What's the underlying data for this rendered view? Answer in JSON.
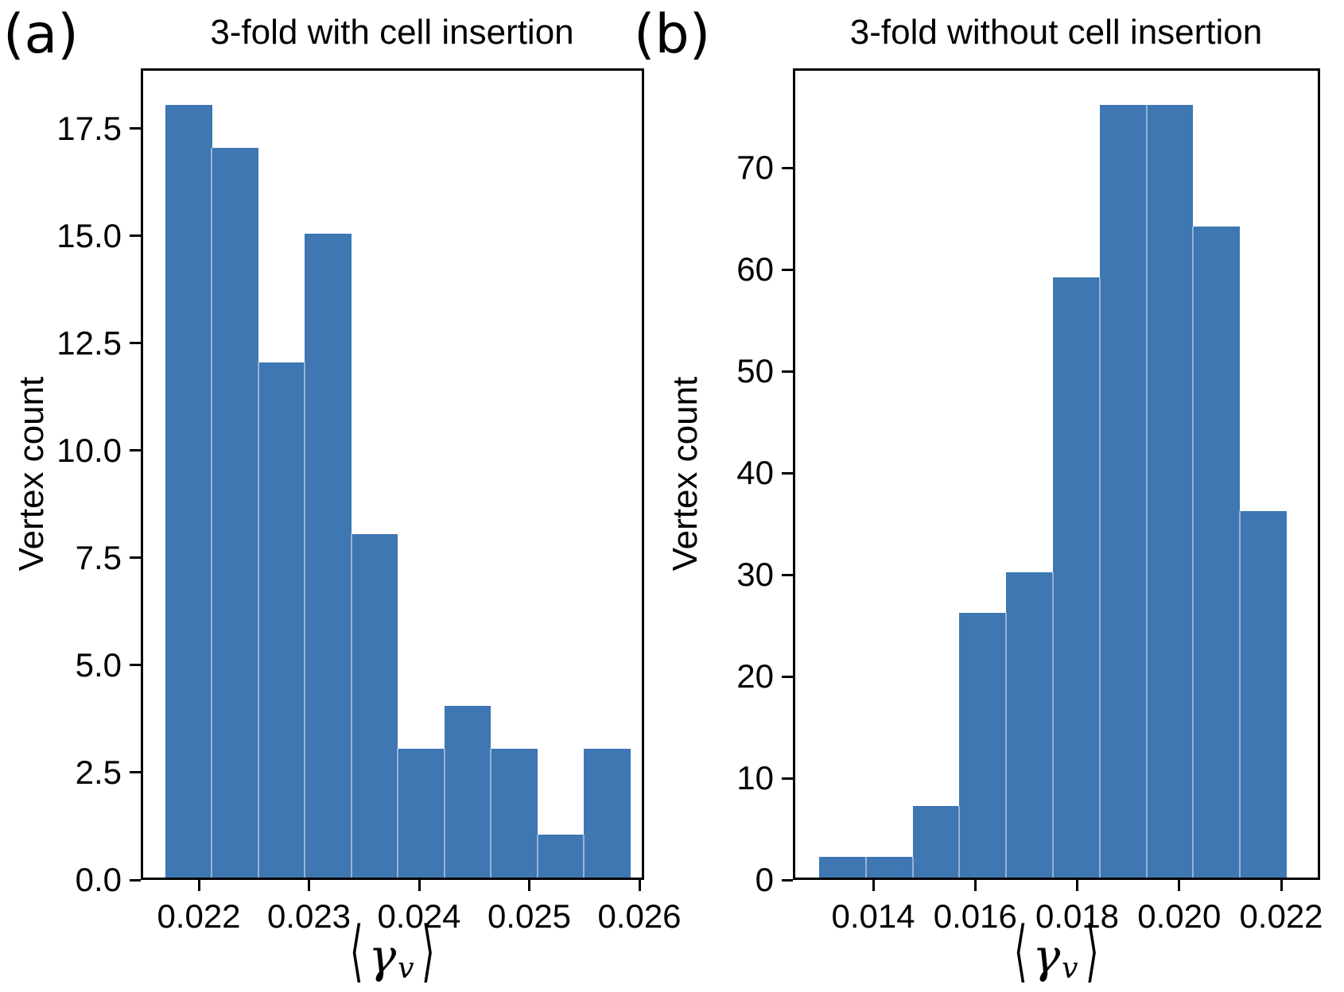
{
  "chart_data": [
    {
      "type": "histogram",
      "panel_label": "(a)",
      "title": "3-fold with cell insertion",
      "ylabel": "Vertex count",
      "xlabel": "⟨γv⟩",
      "xlabel_parts": {
        "lbracket": "⟨",
        "symbol": "γ",
        "subscript": "v",
        "rbracket": "⟩"
      },
      "bar_color": "#3E77B2",
      "bin_start": 0.021675,
      "bin_width": 0.000422,
      "values": [
        18,
        17,
        12,
        15,
        8,
        3,
        4,
        3,
        1,
        3
      ],
      "xlim": [
        0.021473,
        0.026043
      ],
      "ylim": [
        0,
        18.9
      ],
      "grid": false,
      "x_ticks": [
        {
          "value": 0.022,
          "label": "0.022"
        },
        {
          "value": 0.023,
          "label": "0.023"
        },
        {
          "value": 0.024,
          "label": "0.024"
        },
        {
          "value": 0.025,
          "label": "0.025"
        },
        {
          "value": 0.026,
          "label": "0.026"
        }
      ],
      "y_ticks": [
        {
          "value": 0.0,
          "label": "0.0"
        },
        {
          "value": 2.5,
          "label": "2.5"
        },
        {
          "value": 5.0,
          "label": "5.0"
        },
        {
          "value": 7.5,
          "label": "7.5"
        },
        {
          "value": 10.0,
          "label": "10.0"
        },
        {
          "value": 12.5,
          "label": "12.5"
        },
        {
          "value": 15.0,
          "label": "15.0"
        },
        {
          "value": 17.5,
          "label": "17.5"
        }
      ]
    },
    {
      "type": "histogram",
      "panel_label": "(b)",
      "title": "3-fold without cell insertion",
      "ylabel": "Vertex count",
      "xlabel": "⟨γv⟩",
      "xlabel_parts": {
        "lbracket": "⟨",
        "symbol": "γ",
        "subscript": "v",
        "rbracket": "⟩"
      },
      "bar_color": "#3E77B2",
      "bin_start": 0.012892,
      "bin_width": 0.000917,
      "values": [
        2,
        2,
        7,
        26,
        30,
        59,
        76,
        76,
        64,
        36
      ],
      "xlim": [
        0.012424,
        0.022764
      ],
      "ylim": [
        0,
        79.8
      ],
      "grid": false,
      "x_ticks": [
        {
          "value": 0.014,
          "label": "0.014"
        },
        {
          "value": 0.016,
          "label": "0.016"
        },
        {
          "value": 0.018,
          "label": "0.018"
        },
        {
          "value": 0.02,
          "label": "0.020"
        },
        {
          "value": 0.022,
          "label": "0.022"
        }
      ],
      "y_ticks": [
        {
          "value": 0,
          "label": "0"
        },
        {
          "value": 10,
          "label": "10"
        },
        {
          "value": 20,
          "label": "20"
        },
        {
          "value": 30,
          "label": "30"
        },
        {
          "value": 40,
          "label": "40"
        },
        {
          "value": 50,
          "label": "50"
        },
        {
          "value": 60,
          "label": "60"
        },
        {
          "value": 70,
          "label": "70"
        }
      ]
    }
  ]
}
